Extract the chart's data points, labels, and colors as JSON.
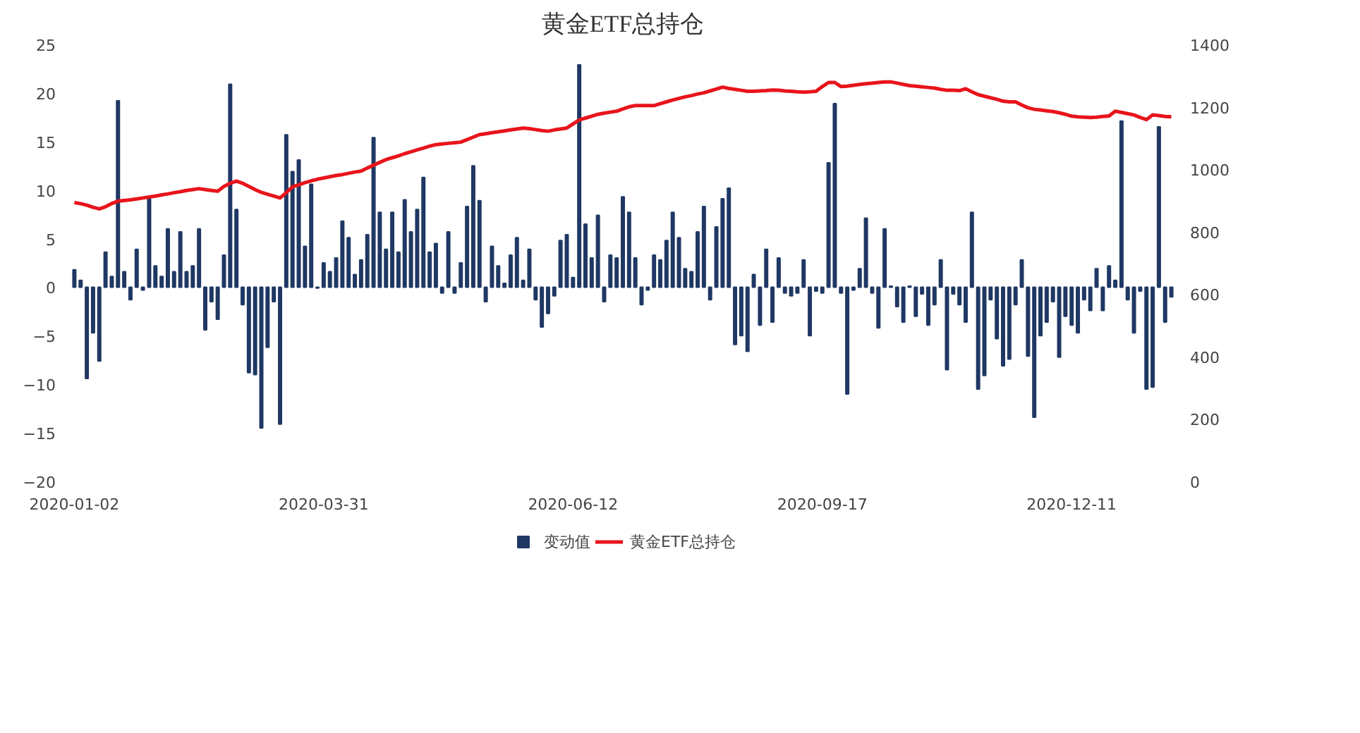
{
  "chart_data": {
    "type": "bar",
    "title": "黄金ETF总持仓",
    "categories": [
      "2020-01-02",
      null,
      null,
      null,
      null,
      null,
      null,
      null,
      null,
      null,
      null,
      null,
      null,
      null,
      null,
      null,
      null,
      null,
      null,
      null,
      null,
      null,
      null,
      null,
      null,
      null,
      null,
      null,
      null,
      null,
      null,
      null,
      null,
      null,
      null,
      null,
      null,
      null,
      null,
      null,
      "2020-03-31",
      null,
      null,
      null,
      null,
      null,
      null,
      null,
      null,
      null,
      null,
      null,
      null,
      null,
      null,
      null,
      null,
      null,
      null,
      null,
      null,
      null,
      null,
      null,
      null,
      null,
      null,
      null,
      null,
      null,
      null,
      null,
      null,
      null,
      null,
      null,
      null,
      null,
      null,
      null,
      "2020-06-12",
      null,
      null,
      null,
      null,
      null,
      null,
      null,
      null,
      null,
      null,
      null,
      null,
      null,
      null,
      null,
      null,
      null,
      null,
      null,
      null,
      null,
      null,
      null,
      null,
      null,
      null,
      null,
      null,
      null,
      null,
      null,
      null,
      null,
      null,
      null,
      null,
      null,
      null,
      null,
      "2020-09-17",
      null,
      null,
      null,
      null,
      null,
      null,
      null,
      null,
      null,
      null,
      null,
      null,
      null,
      null,
      null,
      null,
      null,
      null,
      null,
      null,
      null,
      null,
      null,
      null,
      null,
      null,
      null,
      null,
      null,
      null,
      null,
      null,
      null,
      null,
      null,
      null,
      null,
      null,
      null,
      "2020-12-11",
      null,
      null,
      null,
      null,
      null,
      null,
      null,
      null,
      null,
      null,
      null,
      null,
      null,
      null,
      null,
      null
    ],
    "series": [
      {
        "name": "变动值",
        "color": "#1f3864",
        "values": [
          1.8,
          0.7,
          -9.4,
          -4.7,
          -7.6,
          3.6,
          1.1,
          19.2,
          1.6,
          -1.3,
          3.9,
          -0.3,
          9.1,
          2.2,
          1.1,
          6.0,
          1.6,
          5.7,
          1.6,
          2.2,
          6.0,
          -4.4,
          -1.5,
          -3.3,
          3.3,
          20.9,
          8.0,
          -1.8,
          -8.8,
          -9.0,
          -14.5,
          -6.2,
          -1.5,
          -14.1,
          15.7,
          11.9,
          13.1,
          4.2,
          10.6,
          -0.1,
          2.5,
          1.6,
          3.0,
          6.8,
          5.1,
          1.3,
          2.8,
          5.4,
          15.4,
          7.7,
          3.9,
          7.7,
          3.6,
          9.0,
          5.7,
          8.0,
          11.3,
          3.6,
          4.5,
          -0.6,
          5.7,
          -0.6,
          2.5,
          8.3,
          12.5,
          8.9,
          -1.5,
          4.2,
          2.2,
          0.4,
          3.3,
          5.1,
          0.7,
          3.9,
          -1.3,
          -4.1,
          -2.7,
          -0.9,
          4.8,
          5.4,
          1.0,
          22.9,
          6.5,
          3.0,
          7.4,
          -1.5,
          3.3,
          3.0,
          9.3,
          7.7,
          3.0,
          -1.8,
          -0.3,
          3.3,
          2.8,
          4.8,
          7.7,
          5.1,
          1.9,
          1.6,
          5.7,
          8.3,
          -1.3,
          6.2,
          9.1,
          10.2,
          -5.9,
          -5.0,
          -6.6,
          1.3,
          -3.9,
          3.9,
          -3.6,
          3.0,
          -0.6,
          -0.9,
          -0.6,
          2.8,
          -5.0,
          -0.4,
          -0.6,
          12.8,
          18.9,
          -0.6,
          -11.0,
          -0.3,
          1.9,
          7.1,
          -0.6,
          -4.2,
          6.0,
          0.1,
          -2.0,
          -3.6,
          0.1,
          -3.0,
          -0.7,
          -3.9,
          -1.8,
          2.8,
          -8.5,
          -0.7,
          -1.8,
          -3.6,
          7.7,
          -10.5,
          -9.1,
          -1.3,
          -5.3,
          -8.1,
          -7.4,
          -1.8,
          2.8,
          -7.1,
          -13.4,
          -5.0,
          -3.6,
          -1.5,
          -7.2,
          -3.0,
          -3.9,
          -4.7,
          -1.3,
          -2.4,
          1.9,
          -2.4,
          2.2,
          0.7,
          17.1,
          -1.3,
          -4.7,
          -0.4,
          -10.5,
          -10.3,
          16.5,
          -3.6,
          -1.0
        ]
      },
      {
        "name": "黄金ETF总持仓",
        "type": "line",
        "axis": "y2",
        "color": "#e8141b",
        "values": [
          893,
          890,
          885,
          878,
          873,
          880,
          890,
          898,
          900,
          902,
          905,
          908,
          911,
          914,
          918,
          921,
          925,
          928,
          932,
          935,
          938,
          935,
          932,
          930,
          945,
          955,
          962,
          955,
          945,
          935,
          926,
          920,
          914,
          908,
          925,
          944,
          950,
          957,
          963,
          968,
          972,
          976,
          980,
          983,
          987,
          991,
          994,
          1004,
          1013,
          1022,
          1031,
          1037,
          1043,
          1050,
          1056,
          1062,
          1068,
          1074,
          1079,
          1081,
          1083,
          1085,
          1087,
          1095,
          1103,
          1111,
          1114,
          1117,
          1120,
          1123,
          1126,
          1129,
          1132,
          1130,
          1127,
          1124,
          1122,
          1126,
          1129,
          1132,
          1145,
          1158,
          1164,
          1170,
          1176,
          1180,
          1183,
          1186,
          1193,
          1200,
          1204,
          1204,
          1204,
          1204,
          1210,
          1216,
          1222,
          1227,
          1232,
          1236,
          1241,
          1245,
          1251,
          1257,
          1263,
          1259,
          1256,
          1253,
          1250,
          1250,
          1251,
          1252,
          1254,
          1253,
          1251,
          1250,
          1248,
          1247,
          1248,
          1250,
          1265,
          1278,
          1278,
          1265,
          1266,
          1269,
          1272,
          1274,
          1276,
          1278,
          1280,
          1280,
          1276,
          1272,
          1268,
          1266,
          1264,
          1262,
          1260,
          1256,
          1253,
          1253,
          1252,
          1258,
          1248,
          1239,
          1234,
          1229,
          1224,
          1218,
          1216,
          1216,
          1206,
          1197,
          1192,
          1190,
          1187,
          1185,
          1181,
          1176,
          1170,
          1168,
          1167,
          1166,
          1167,
          1169,
          1171,
          1186,
          1182,
          1178,
          1174,
          1166,
          1159,
          1174,
          1172,
          1169,
          1168
        ]
      }
    ],
    "ylim": [
      -20,
      25
    ],
    "yticks": [
      -20,
      -15,
      -10,
      -5,
      0,
      5,
      10,
      15,
      20,
      25
    ],
    "y2lim": [
      0,
      1400
    ],
    "y2ticks": [
      0,
      200,
      400,
      600,
      800,
      1000,
      1200,
      1400
    ],
    "grid": false,
    "legend": "bottom"
  }
}
